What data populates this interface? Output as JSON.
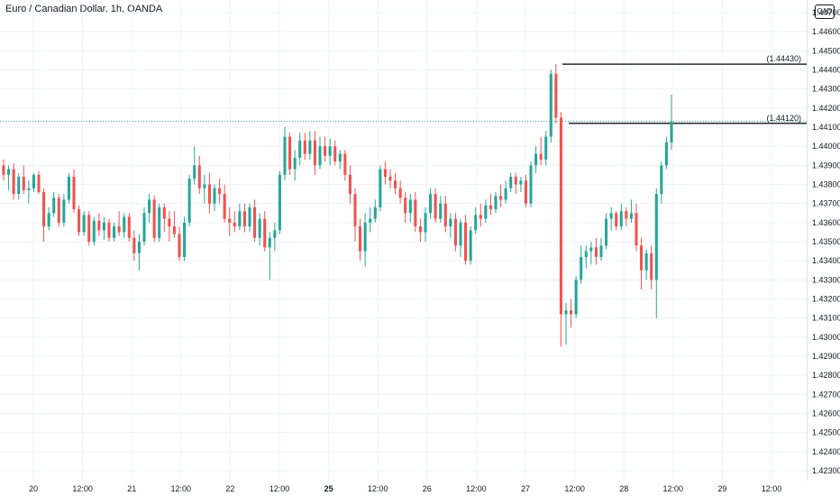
{
  "header": {
    "title": "Euro / Canadian Dollar, 1h, OANDA",
    "currency_badge": "CAD"
  },
  "colors": {
    "bull": "#26a69a",
    "bear": "#ef5350",
    "grid": "#f0f3fa",
    "last_price_line": "#26a69a",
    "level_line": "#000000"
  },
  "chart_data": {
    "type": "candlestick",
    "symbol": "EURCAD",
    "timeframe": "1h",
    "y_ticks": [
      "1.44700",
      "1.44600",
      "1.44500",
      "1.44400",
      "1.44300",
      "1.44200",
      "1.44100",
      "1.44000",
      "1.43900",
      "1.43800",
      "1.43700",
      "1.43600",
      "1.43500",
      "1.43400",
      "1.43300",
      "1.43200",
      "1.43100",
      "1.43000",
      "1.42900",
      "1.42800",
      "1.42700",
      "1.42600",
      "1.42500",
      "1.42400",
      "1.42300"
    ],
    "ylim": [
      1.4229,
      1.4472
    ],
    "x_ticks": [
      "20",
      "12:00",
      "21",
      "12:00",
      "22",
      "12:00",
      "25",
      "12:00",
      "26",
      "12:00",
      "27",
      "12:00",
      "28",
      "12:00",
      "29",
      "12:00"
    ],
    "bold_x_tick": "25",
    "levels": [
      {
        "label": "(1.44430)",
        "value": 1.4443
      },
      {
        "label": "(1.44120)",
        "value": 1.4412
      }
    ],
    "last_price": 1.4413,
    "candles": [
      [
        1.439,
        1.4393,
        1.4382,
        1.4385
      ],
      [
        1.4385,
        1.439,
        1.4377,
        1.4388
      ],
      [
        1.4388,
        1.4391,
        1.4372,
        1.4375
      ],
      [
        1.4375,
        1.4386,
        1.4372,
        1.4384
      ],
      [
        1.4384,
        1.439,
        1.4375,
        1.4377
      ],
      [
        1.4377,
        1.4382,
        1.437,
        1.4378
      ],
      [
        1.4378,
        1.4386,
        1.4376,
        1.4385
      ],
      [
        1.4385,
        1.4387,
        1.4375,
        1.4376
      ],
      [
        1.4376,
        1.4378,
        1.435,
        1.4358
      ],
      [
        1.4358,
        1.4368,
        1.4356,
        1.4365
      ],
      [
        1.4365,
        1.4376,
        1.4363,
        1.4373
      ],
      [
        1.4373,
        1.4375,
        1.4358,
        1.436
      ],
      [
        1.436,
        1.4375,
        1.4358,
        1.4372
      ],
      [
        1.4372,
        1.4386,
        1.437,
        1.4384
      ],
      [
        1.4384,
        1.4388,
        1.4365,
        1.4367
      ],
      [
        1.4367,
        1.4369,
        1.4353,
        1.4355
      ],
      [
        1.4355,
        1.4366,
        1.4353,
        1.4364
      ],
      [
        1.4364,
        1.4366,
        1.4348,
        1.435
      ],
      [
        1.435,
        1.4363,
        1.4348,
        1.4361
      ],
      [
        1.4361,
        1.4365,
        1.4353,
        1.4356
      ],
      [
        1.4356,
        1.4363,
        1.4351,
        1.436
      ],
      [
        1.436,
        1.4362,
        1.435,
        1.4352
      ],
      [
        1.4352,
        1.436,
        1.435,
        1.4358
      ],
      [
        1.4358,
        1.4366,
        1.4353,
        1.4355
      ],
      [
        1.4355,
        1.4365,
        1.4352,
        1.4363
      ],
      [
        1.4363,
        1.4365,
        1.435,
        1.4352
      ],
      [
        1.4352,
        1.4356,
        1.434,
        1.4344
      ],
      [
        1.4344,
        1.4354,
        1.4335,
        1.435
      ],
      [
        1.435,
        1.4368,
        1.4348,
        1.4365
      ],
      [
        1.4365,
        1.4375,
        1.436,
        1.4372
      ],
      [
        1.4372,
        1.4374,
        1.435,
        1.4352
      ],
      [
        1.4352,
        1.437,
        1.435,
        1.4368
      ],
      [
        1.4368,
        1.437,
        1.4355,
        1.4362
      ],
      [
        1.4362,
        1.4366,
        1.435,
        1.4358
      ],
      [
        1.4358,
        1.4366,
        1.4352,
        1.4354
      ],
      [
        1.4354,
        1.4358,
        1.434,
        1.4342
      ],
      [
        1.4342,
        1.4363,
        1.434,
        1.436
      ],
      [
        1.436,
        1.4385,
        1.4358,
        1.4383
      ],
      [
        1.4383,
        1.44,
        1.438,
        1.439
      ],
      [
        1.439,
        1.4395,
        1.4375,
        1.4378
      ],
      [
        1.4378,
        1.4385,
        1.437,
        1.438
      ],
      [
        1.438,
        1.4386,
        1.4365,
        1.437
      ],
      [
        1.437,
        1.438,
        1.4366,
        1.4378
      ],
      [
        1.4378,
        1.4383,
        1.437,
        1.4375
      ],
      [
        1.4375,
        1.438,
        1.436,
        1.4362
      ],
      [
        1.4362,
        1.4368,
        1.4353,
        1.436
      ],
      [
        1.436,
        1.4366,
        1.4355,
        1.4358
      ],
      [
        1.4358,
        1.437,
        1.4356,
        1.4366
      ],
      [
        1.4366,
        1.437,
        1.4355,
        1.4358
      ],
      [
        1.4358,
        1.437,
        1.4355,
        1.4368
      ],
      [
        1.4368,
        1.4372,
        1.435,
        1.4352
      ],
      [
        1.4352,
        1.4365,
        1.4348,
        1.4362
      ],
      [
        1.4362,
        1.4366,
        1.4345,
        1.4347
      ],
      [
        1.4347,
        1.4355,
        1.433,
        1.4352
      ],
      [
        1.4352,
        1.436,
        1.4345,
        1.4356
      ],
      [
        1.4356,
        1.4387,
        1.4354,
        1.4385
      ],
      [
        1.4385,
        1.441,
        1.4382,
        1.4405
      ],
      [
        1.4405,
        1.4407,
        1.4385,
        1.4388
      ],
      [
        1.4388,
        1.4398,
        1.4382,
        1.4394
      ],
      [
        1.4394,
        1.4407,
        1.439,
        1.4403
      ],
      [
        1.4403,
        1.4407,
        1.4393,
        1.4396
      ],
      [
        1.4396,
        1.4408,
        1.4393,
        1.4403
      ],
      [
        1.4403,
        1.4408,
        1.4385,
        1.439
      ],
      [
        1.439,
        1.4405,
        1.4388,
        1.44
      ],
      [
        1.44,
        1.4405,
        1.4392,
        1.4395
      ],
      [
        1.4395,
        1.4404,
        1.439,
        1.44
      ],
      [
        1.44,
        1.4403,
        1.439,
        1.4392
      ],
      [
        1.4392,
        1.4398,
        1.4388,
        1.4396
      ],
      [
        1.4396,
        1.4398,
        1.4382,
        1.4385
      ],
      [
        1.4385,
        1.439,
        1.437,
        1.4375
      ],
      [
        1.4375,
        1.4378,
        1.435,
        1.4358
      ],
      [
        1.4358,
        1.4362,
        1.434,
        1.4345
      ],
      [
        1.4345,
        1.4365,
        1.4337,
        1.436
      ],
      [
        1.436,
        1.4368,
        1.4355,
        1.4362
      ],
      [
        1.4362,
        1.4372,
        1.436,
        1.4368
      ],
      [
        1.4368,
        1.439,
        1.4366,
        1.4388
      ],
      [
        1.4388,
        1.4392,
        1.438,
        1.4384
      ],
      [
        1.4384,
        1.4388,
        1.4378,
        1.4382
      ],
      [
        1.4382,
        1.4386,
        1.4375,
        1.4378
      ],
      [
        1.4378,
        1.4382,
        1.437,
        1.4373
      ],
      [
        1.4373,
        1.4376,
        1.436,
        1.4365
      ],
      [
        1.4365,
        1.4375,
        1.436,
        1.4372
      ],
      [
        1.4372,
        1.4376,
        1.4355,
        1.4358
      ],
      [
        1.4358,
        1.4362,
        1.435,
        1.4355
      ],
      [
        1.4355,
        1.4368,
        1.435,
        1.4365
      ],
      [
        1.4365,
        1.4378,
        1.4362,
        1.4375
      ],
      [
        1.4375,
        1.4378,
        1.436,
        1.4362
      ],
      [
        1.4362,
        1.4374,
        1.436,
        1.437
      ],
      [
        1.437,
        1.4374,
        1.4355,
        1.4358
      ],
      [
        1.4358,
        1.4365,
        1.4352,
        1.4362
      ],
      [
        1.4362,
        1.4365,
        1.4345,
        1.4348
      ],
      [
        1.4348,
        1.4362,
        1.4342,
        1.436
      ],
      [
        1.436,
        1.4364,
        1.4338,
        1.434
      ],
      [
        1.434,
        1.4358,
        1.4338,
        1.4356
      ],
      [
        1.4356,
        1.4368,
        1.4354,
        1.4364
      ],
      [
        1.4364,
        1.437,
        1.4358,
        1.4362
      ],
      [
        1.4362,
        1.4372,
        1.436,
        1.4369
      ],
      [
        1.4369,
        1.4375,
        1.4364,
        1.4367
      ],
      [
        1.4367,
        1.4376,
        1.4365,
        1.4374
      ],
      [
        1.4374,
        1.438,
        1.4368,
        1.4372
      ],
      [
        1.4372,
        1.4382,
        1.437,
        1.4378
      ],
      [
        1.4378,
        1.4386,
        1.4376,
        1.4384
      ],
      [
        1.4384,
        1.4386,
        1.4375,
        1.438
      ],
      [
        1.438,
        1.4384,
        1.4376,
        1.4382
      ],
      [
        1.4382,
        1.4385,
        1.4368,
        1.437
      ],
      [
        1.437,
        1.4392,
        1.4368,
        1.439
      ],
      [
        1.439,
        1.44,
        1.4386,
        1.4396
      ],
      [
        1.4396,
        1.4405,
        1.439,
        1.4393
      ],
      [
        1.4393,
        1.4408,
        1.439,
        1.4405
      ],
      [
        1.4405,
        1.444,
        1.4402,
        1.4438
      ],
      [
        1.4438,
        1.4443,
        1.4412,
        1.4415
      ],
      [
        1.4415,
        1.4418,
        1.4295,
        1.4312
      ],
      [
        1.4312,
        1.4318,
        1.4296,
        1.4314
      ],
      [
        1.4314,
        1.432,
        1.4305,
        1.4312
      ],
      [
        1.4312,
        1.4332,
        1.431,
        1.433
      ],
      [
        1.433,
        1.4348,
        1.4328,
        1.4342
      ],
      [
        1.4342,
        1.4348,
        1.4336,
        1.4345
      ],
      [
        1.4345,
        1.435,
        1.4338,
        1.4347
      ],
      [
        1.4347,
        1.4352,
        1.4338,
        1.4342
      ],
      [
        1.4342,
        1.4352,
        1.434,
        1.4348
      ],
      [
        1.4348,
        1.4365,
        1.4346,
        1.4362
      ],
      [
        1.4362,
        1.4368,
        1.4356,
        1.4365
      ],
      [
        1.4365,
        1.4366,
        1.4356,
        1.4358
      ],
      [
        1.4358,
        1.437,
        1.4356,
        1.4366
      ],
      [
        1.4366,
        1.4368,
        1.4358,
        1.4362
      ],
      [
        1.4362,
        1.4372,
        1.436,
        1.4365
      ],
      [
        1.4365,
        1.437,
        1.4345,
        1.4348
      ],
      [
        1.4348,
        1.4352,
        1.4325,
        1.4335
      ],
      [
        1.4335,
        1.4346,
        1.433,
        1.4344
      ],
      [
        1.4344,
        1.4348,
        1.4325,
        1.433
      ],
      [
        1.433,
        1.4378,
        1.431,
        1.4375
      ],
      [
        1.4375,
        1.4392,
        1.437,
        1.439
      ],
      [
        1.439,
        1.4405,
        1.4388,
        1.4402
      ],
      [
        1.4402,
        1.4427,
        1.4398,
        1.4413
      ]
    ]
  }
}
